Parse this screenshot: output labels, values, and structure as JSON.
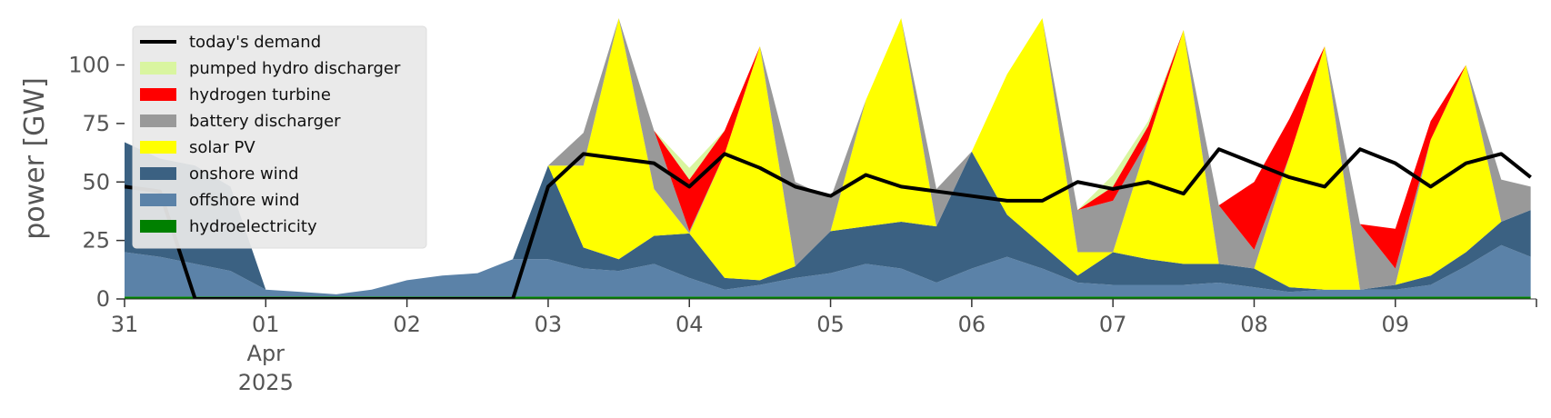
{
  "chart_data": {
    "type": "area",
    "title": "",
    "xlabel": "",
    "ylabel": "power [GW]",
    "ylim": [
      0,
      120
    ],
    "xlim": [
      "2025-03-31T00:00",
      "2025-04-09T23:59"
    ],
    "yticks": [
      0,
      25,
      50,
      75,
      100
    ],
    "xticks": [
      {
        "date": "2025-03-31",
        "label": "31"
      },
      {
        "date": "2025-04-01",
        "label": "01",
        "sub": [
          "Apr",
          "2025"
        ]
      },
      {
        "date": "2025-04-02",
        "label": "02"
      },
      {
        "date": "2025-04-03",
        "label": "03"
      },
      {
        "date": "2025-04-04",
        "label": "04"
      },
      {
        "date": "2025-04-05",
        "label": "05"
      },
      {
        "date": "2025-04-06",
        "label": "06"
      },
      {
        "date": "2025-04-07",
        "label": "07"
      },
      {
        "date": "2025-04-08",
        "label": "08"
      },
      {
        "date": "2025-04-09",
        "label": "09"
      }
    ],
    "grid": false,
    "legend_position": "top-left",
    "x": [
      "2025-03-31 00:00",
      "2025-03-31 06:00",
      "2025-03-31 12:00",
      "2025-03-31 18:00",
      "2025-04-01 00:00",
      "2025-04-01 06:00",
      "2025-04-01 12:00",
      "2025-04-01 18:00",
      "2025-04-02 00:00",
      "2025-04-02 06:00",
      "2025-04-02 12:00",
      "2025-04-02 18:00",
      "2025-04-03 00:00",
      "2025-04-03 06:00",
      "2025-04-03 12:00",
      "2025-04-03 18:00",
      "2025-04-04 00:00",
      "2025-04-04 06:00",
      "2025-04-04 12:00",
      "2025-04-04 18:00",
      "2025-04-05 00:00",
      "2025-04-05 06:00",
      "2025-04-05 12:00",
      "2025-04-05 18:00",
      "2025-04-06 00:00",
      "2025-04-06 06:00",
      "2025-04-06 12:00",
      "2025-04-06 18:00",
      "2025-04-07 00:00",
      "2025-04-07 06:00",
      "2025-04-07 12:00",
      "2025-04-07 18:00",
      "2025-04-08 00:00",
      "2025-04-08 06:00",
      "2025-04-08 12:00",
      "2025-04-08 18:00",
      "2025-04-09 00:00",
      "2025-04-09 06:00",
      "2025-04-09 12:00",
      "2025-04-09 18:00",
      "2025-04-09 23:00"
    ],
    "series": [
      {
        "name": "hydroelectricity",
        "color": "#008000",
        "values": [
          1,
          1,
          1,
          1,
          1,
          1,
          1,
          1,
          1,
          1,
          1,
          1,
          1,
          1,
          1,
          1,
          1,
          1,
          1,
          1,
          1,
          1,
          1,
          1,
          1,
          1,
          1,
          1,
          1,
          1,
          1,
          1,
          1,
          1,
          1,
          1,
          1,
          1,
          1,
          1,
          1
        ]
      },
      {
        "name": "offshore wind",
        "color": "#5b82a8",
        "values": [
          19,
          17,
          14,
          11,
          3,
          2,
          1,
          3,
          7,
          9,
          10,
          16,
          16,
          12,
          11,
          14,
          8,
          3,
          5,
          8,
          10,
          14,
          12,
          6,
          12,
          17,
          12,
          6,
          5,
          5,
          5,
          6,
          4,
          2,
          3,
          3,
          3,
          5,
          13,
          22,
          17
        ]
      },
      {
        "name": "onshore wind",
        "color": "#3b6182",
        "values": [
          47,
          42,
          42,
          36,
          0,
          0,
          0,
          0,
          0,
          0,
          0,
          0,
          40,
          9,
          5,
          12,
          19,
          5,
          2,
          5,
          18,
          16,
          20,
          24,
          50,
          18,
          10,
          3,
          14,
          11,
          9,
          8,
          8,
          2,
          0,
          0,
          2,
          4,
          6,
          10,
          20
        ]
      },
      {
        "name": "solar PV",
        "color": "#ffff00",
        "values": [
          0,
          0,
          0,
          0,
          0,
          0,
          0,
          0,
          0,
          0,
          0,
          0,
          0,
          35,
          104,
          20,
          0,
          53,
          100,
          0,
          0,
          54,
          100,
          0,
          0,
          60,
          100,
          10,
          0,
          51,
          100,
          0,
          0,
          56,
          104,
          0,
          0,
          58,
          80,
          0,
          0
        ]
      },
      {
        "name": "battery discharger",
        "color": "#999999",
        "values": [
          0,
          0,
          0,
          0,
          0,
          0,
          0,
          0,
          0,
          0,
          0,
          0,
          0,
          14,
          0,
          25,
          1,
          0,
          0,
          36,
          14,
          0,
          0,
          16,
          0,
          0,
          0,
          18,
          22,
          0,
          0,
          25,
          8,
          0,
          0,
          28,
          7,
          0,
          0,
          18,
          10
        ]
      },
      {
        "name": "hydrogen turbine",
        "color": "#ff0000",
        "values": [
          0,
          0,
          0,
          0,
          0,
          0,
          0,
          0,
          0,
          0,
          0,
          0,
          0,
          0,
          0,
          0,
          22,
          10,
          0,
          0,
          0,
          0,
          0,
          0,
          0,
          0,
          0,
          0,
          6,
          6,
          0,
          0,
          29,
          16,
          0,
          0,
          17,
          8,
          0,
          0,
          0
        ]
      },
      {
        "name": "pumped hydro discharger",
        "color": "#d9f5a0",
        "values": [
          0,
          0,
          0,
          0,
          0,
          0,
          0,
          0,
          0,
          0,
          0,
          0,
          0,
          0,
          0,
          0,
          5,
          0,
          0,
          0,
          0,
          0,
          0,
          0,
          0,
          0,
          0,
          0,
          5,
          2,
          0,
          0,
          0,
          0,
          0,
          0,
          0,
          0,
          0,
          0,
          0
        ]
      }
    ],
    "line": {
      "name": "today's demand",
      "color": "#000000",
      "values": [
        48,
        46,
        0,
        0,
        0,
        0,
        0,
        0,
        0,
        0,
        0,
        0,
        48,
        62,
        60,
        58,
        48,
        62,
        56,
        48,
        44,
        53,
        48,
        46,
        44,
        42,
        42,
        50,
        47,
        50,
        45,
        64,
        58,
        52,
        48,
        64,
        58,
        48,
        58,
        62,
        52
      ]
    }
  }
}
